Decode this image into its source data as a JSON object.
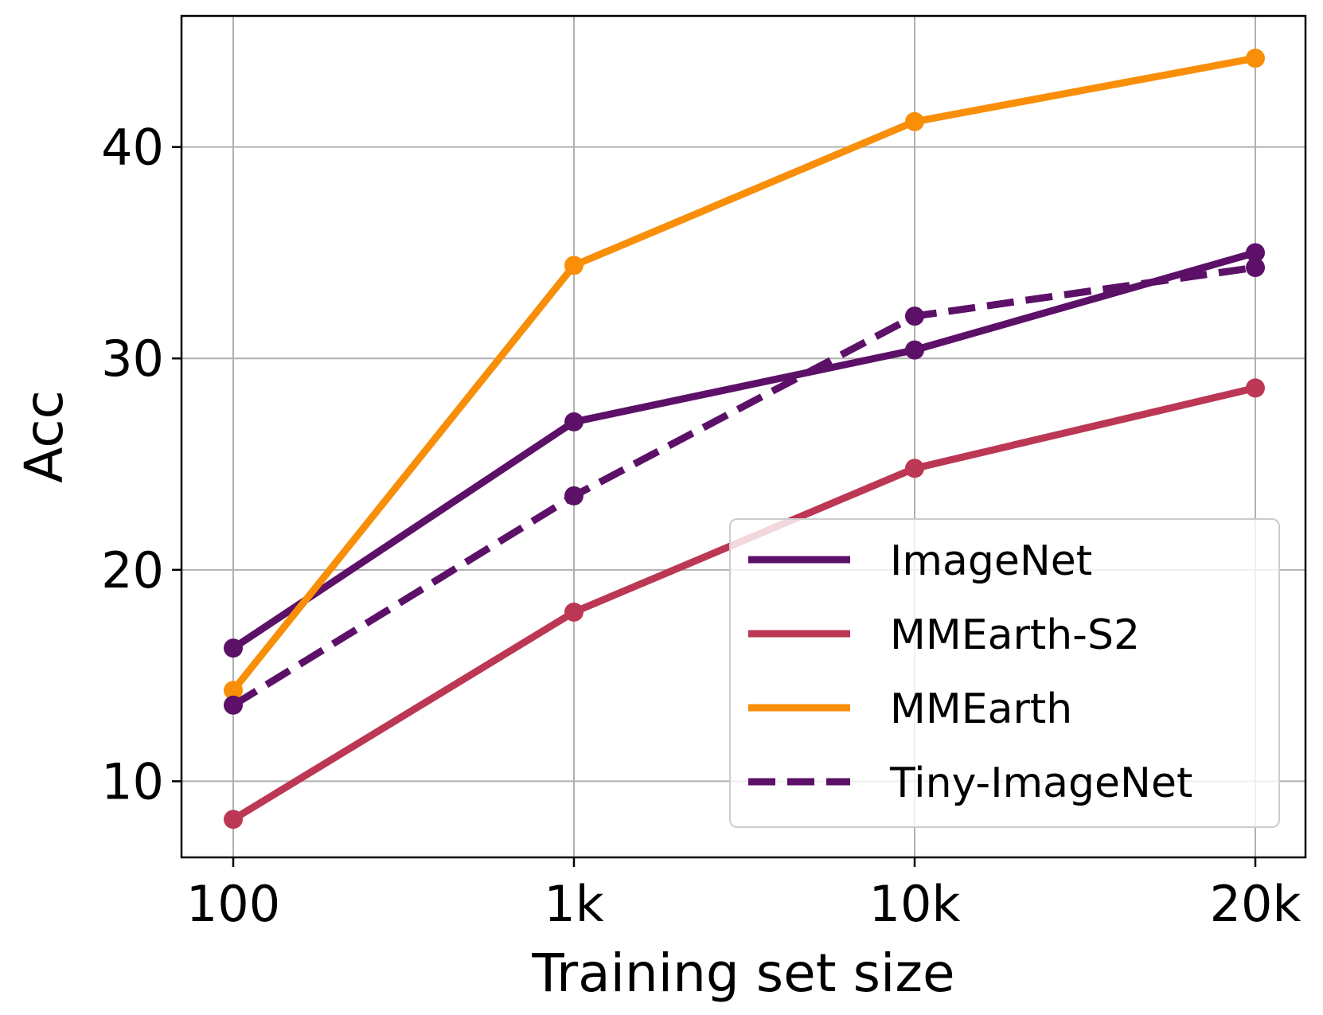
{
  "chart_data": {
    "type": "line",
    "title": "",
    "xlabel": "Training set size",
    "ylabel": "Acc",
    "categories": [
      "100",
      "1k",
      "10k",
      "20k"
    ],
    "ylim": [
      6.4,
      46.2
    ],
    "yticks": [
      10,
      20,
      30,
      40
    ],
    "ytick_labels": [
      "10",
      "20",
      "30",
      "40"
    ],
    "grid": true,
    "legend_position": "lower right",
    "series": [
      {
        "name": "ImageNet",
        "color": "#5c1068",
        "style": "solid",
        "values": [
          16.3,
          27.0,
          30.4,
          35.0
        ]
      },
      {
        "name": "MMEarth-S2",
        "color": "#bc3754",
        "style": "solid",
        "values": [
          8.2,
          18.0,
          24.8,
          28.6
        ]
      },
      {
        "name": "MMEarth",
        "color": "#f98e09",
        "style": "solid",
        "values": [
          14.3,
          34.4,
          41.2,
          44.2
        ]
      },
      {
        "name": "Tiny-ImageNet",
        "color": "#5c1068",
        "style": "dashed",
        "values": [
          13.6,
          23.5,
          32.0,
          34.3
        ]
      }
    ]
  }
}
